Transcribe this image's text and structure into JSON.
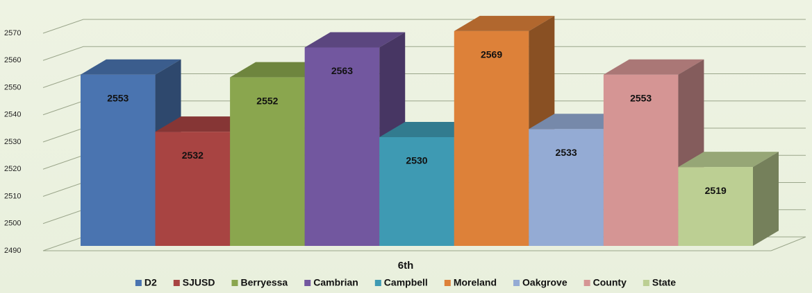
{
  "chart_data": {
    "type": "bar",
    "categories": [
      "6th"
    ],
    "series": [
      {
        "name": "D2",
        "color": "#4a74b0",
        "values": [
          2553
        ]
      },
      {
        "name": "SJUSD",
        "color": "#a84442",
        "values": [
          2532
        ]
      },
      {
        "name": "Berryessa",
        "color": "#8aa64e",
        "values": [
          2552
        ]
      },
      {
        "name": "Cambrian",
        "color": "#72579f",
        "values": [
          2563
        ]
      },
      {
        "name": "Campbell",
        "color": "#3e9ab3",
        "values": [
          2530
        ]
      },
      {
        "name": "Moreland",
        "color": "#dd8139",
        "values": [
          2569
        ]
      },
      {
        "name": "Oakgrove",
        "color": "#94abd4",
        "values": [
          2533
        ]
      },
      {
        "name": "County",
        "color": "#d59594",
        "values": [
          2553
        ]
      },
      {
        "name": "State",
        "color": "#bccf93",
        "values": [
          2519
        ]
      }
    ],
    "ylim": [
      2490,
      2570
    ],
    "yticks": [
      2490,
      2500,
      2510,
      2520,
      2530,
      2540,
      2550,
      2560,
      2570
    ],
    "grid": true,
    "legend": "bottom"
  }
}
